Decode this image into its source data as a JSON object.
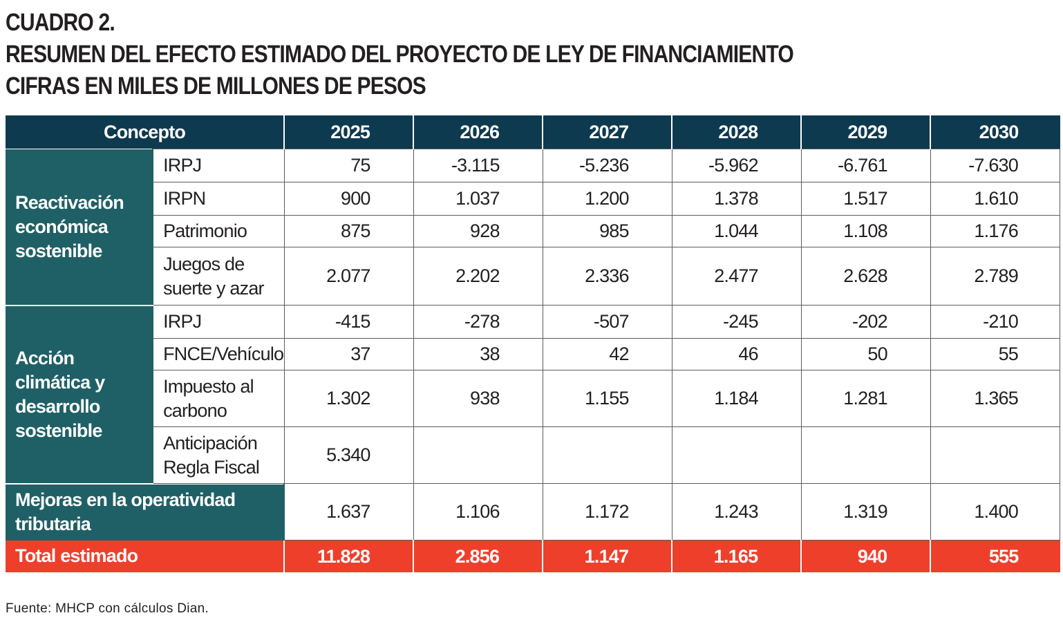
{
  "heading": {
    "line1": "CUADRO 2.",
    "line2": "RESUMEN DEL EFECTO ESTIMADO DEL PROYECTO DE LEY DE FINANCIAMIENTO",
    "line3": "CIFRAS EN MILES DE MILLONES DE PESOS"
  },
  "table": {
    "header": [
      "Concepto",
      "2025",
      "2026",
      "2027",
      "2028",
      "2029",
      "2030"
    ],
    "groups": [
      {
        "label": "Reactivación económica sostenible",
        "rows": [
          {
            "concept": "IRPJ",
            "values": [
              "75",
              "-3.115",
              "-5.236",
              "-5.962",
              "-6.761",
              "-7.630"
            ]
          },
          {
            "concept": "IRPN",
            "values": [
              "900",
              "1.037",
              "1.200",
              "1.378",
              "1.517",
              "1.610"
            ]
          },
          {
            "concept": "Patrimonio",
            "values": [
              "875",
              "928",
              "985",
              "1.044",
              "1.108",
              "1.176"
            ]
          },
          {
            "concept": "Juegos de suerte y azar",
            "values": [
              "2.077",
              "2.202",
              "2.336",
              "2.477",
              "2.628",
              "2.789"
            ]
          }
        ]
      },
      {
        "label": "Acción climática y desarrollo sostenible",
        "rows": [
          {
            "concept": "IRPJ",
            "values": [
              "-415",
              "-278",
              "-507",
              "-245",
              "-202",
              "-210"
            ]
          },
          {
            "concept": "FNCE/Vehículos",
            "values": [
              "37",
              "38",
              "42",
              "46",
              "50",
              "55"
            ]
          },
          {
            "concept": "Impuesto al carbono",
            "values": [
              "1.302",
              "938",
              "1.155",
              "1.184",
              "1.281",
              "1.365"
            ]
          },
          {
            "concept": "Anticipación Regla Fiscal",
            "values": [
              "5.340",
              "",
              "",
              "",
              "",
              ""
            ]
          }
        ]
      }
    ],
    "operatividad": {
      "label": "Mejoras en la operatividad tributaria",
      "values": [
        "1.637",
        "1.106",
        "1.172",
        "1.243",
        "1.319",
        "1.400"
      ]
    },
    "total": {
      "label": "Total estimado",
      "values": [
        "11.828",
        "2.856",
        "1.147",
        "1.165",
        "940",
        "555"
      ]
    }
  },
  "footnote": "Fuente: MHCP con cálculos Dian.",
  "colors": {
    "header_bg": "#0e3a4f",
    "group_bg": "#1f6066",
    "total_bg": "#ee3f2b"
  }
}
